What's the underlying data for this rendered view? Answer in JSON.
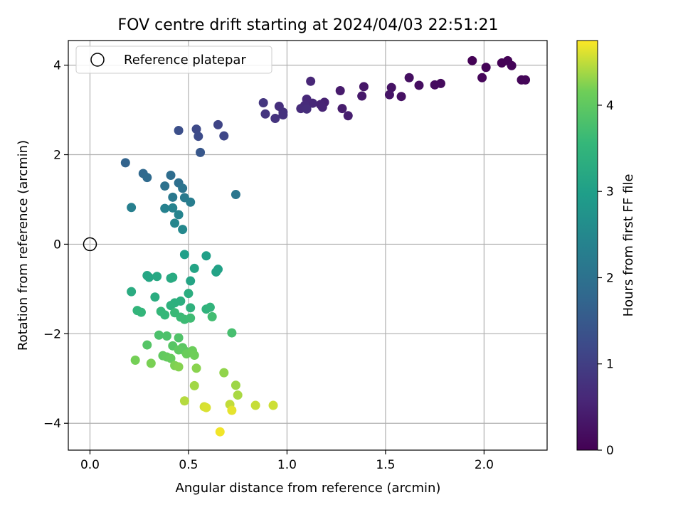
{
  "chart_data": {
    "type": "scatter",
    "title": "FOV centre drift starting at 2024/04/03 22:51:21",
    "xlabel": "Angular distance from reference (arcmin)",
    "ylabel": "Rotation from reference (arcmin)",
    "xlim": [
      -0.11,
      2.32
    ],
    "ylim": [
      -4.6,
      4.55
    ],
    "x_ticks": [
      0.0,
      0.5,
      1.0,
      1.5,
      2.0
    ],
    "x_tick_labels": [
      "0.0",
      "0.5",
      "1.0",
      "1.5",
      "2.0"
    ],
    "y_ticks": [
      -4,
      -2,
      0,
      2,
      4
    ],
    "y_tick_labels": [
      "−4",
      "−2",
      "0",
      "2",
      "4"
    ],
    "grid": true,
    "legend": {
      "placement": "top-left",
      "entries": [
        "Reference platepar"
      ]
    },
    "reference_point": {
      "x": 0.0,
      "y": 0.0
    },
    "colorbar": {
      "label": "Hours from first FF file",
      "colormap": "viridis",
      "range": [
        0,
        4.75
      ],
      "ticks": [
        0,
        1,
        2,
        3,
        4
      ],
      "tick_labels": [
        "0",
        "1",
        "2",
        "3",
        "4"
      ]
    },
    "series": [
      {
        "points": [
          {
            "x": 1.94,
            "y": 4.1,
            "c": 0.02
          },
          {
            "x": 2.01,
            "y": 3.95,
            "c": 0.05
          },
          {
            "x": 2.09,
            "y": 4.05,
            "c": 0.03
          },
          {
            "x": 2.12,
            "y": 4.1,
            "c": 0.04
          },
          {
            "x": 2.14,
            "y": 3.99,
            "c": 0.06
          },
          {
            "x": 1.99,
            "y": 3.72,
            "c": 0.08
          },
          {
            "x": 2.19,
            "y": 3.67,
            "c": 0.07
          },
          {
            "x": 2.21,
            "y": 3.67,
            "c": 0.09
          },
          {
            "x": 1.78,
            "y": 3.59,
            "c": 0.15
          },
          {
            "x": 1.75,
            "y": 3.56,
            "c": 0.17
          },
          {
            "x": 1.67,
            "y": 3.55,
            "c": 0.2
          },
          {
            "x": 1.62,
            "y": 3.72,
            "c": 0.22
          },
          {
            "x": 1.58,
            "y": 3.3,
            "c": 0.25
          },
          {
            "x": 1.53,
            "y": 3.5,
            "c": 0.27
          },
          {
            "x": 1.52,
            "y": 3.34,
            "c": 0.3
          },
          {
            "x": 1.39,
            "y": 3.52,
            "c": 0.33
          },
          {
            "x": 1.38,
            "y": 3.31,
            "c": 0.36
          },
          {
            "x": 1.27,
            "y": 3.43,
            "c": 0.4
          },
          {
            "x": 1.28,
            "y": 3.03,
            "c": 0.42
          },
          {
            "x": 1.31,
            "y": 2.87,
            "c": 0.45
          },
          {
            "x": 1.19,
            "y": 3.17,
            "c": 0.5
          },
          {
            "x": 1.17,
            "y": 3.12,
            "c": 0.53
          },
          {
            "x": 1.18,
            "y": 3.06,
            "c": 0.55
          },
          {
            "x": 1.12,
            "y": 3.64,
            "c": 0.58
          },
          {
            "x": 1.13,
            "y": 3.15,
            "c": 0.6
          },
          {
            "x": 1.1,
            "y": 3.24,
            "c": 0.62
          },
          {
            "x": 1.09,
            "y": 3.1,
            "c": 0.65
          },
          {
            "x": 1.07,
            "y": 3.03,
            "c": 0.67
          },
          {
            "x": 1.1,
            "y": 3.02,
            "c": 0.7
          },
          {
            "x": 0.96,
            "y": 3.08,
            "c": 0.72
          },
          {
            "x": 0.98,
            "y": 2.95,
            "c": 0.75
          },
          {
            "x": 0.98,
            "y": 2.89,
            "c": 0.78
          },
          {
            "x": 0.94,
            "y": 2.81,
            "c": 0.8
          },
          {
            "x": 0.89,
            "y": 2.91,
            "c": 0.83
          },
          {
            "x": 0.88,
            "y": 3.16,
            "c": 0.85
          },
          {
            "x": 0.65,
            "y": 2.67,
            "c": 1.1
          },
          {
            "x": 0.68,
            "y": 2.42,
            "c": 1.15
          },
          {
            "x": 0.54,
            "y": 2.57,
            "c": 1.2
          },
          {
            "x": 0.55,
            "y": 2.41,
            "c": 1.25
          },
          {
            "x": 0.45,
            "y": 2.54,
            "c": 1.3
          },
          {
            "x": 0.56,
            "y": 2.05,
            "c": 1.45
          },
          {
            "x": 0.18,
            "y": 1.82,
            "c": 1.7
          },
          {
            "x": 0.27,
            "y": 1.58,
            "c": 1.8
          },
          {
            "x": 0.29,
            "y": 1.49,
            "c": 1.85
          },
          {
            "x": 0.41,
            "y": 1.54,
            "c": 1.9
          },
          {
            "x": 0.45,
            "y": 1.37,
            "c": 1.95
          },
          {
            "x": 0.38,
            "y": 1.3,
            "c": 2.0
          },
          {
            "x": 0.47,
            "y": 1.25,
            "c": 2.05
          },
          {
            "x": 0.74,
            "y": 1.11,
            "c": 2.1
          },
          {
            "x": 0.42,
            "y": 1.05,
            "c": 2.15
          },
          {
            "x": 0.48,
            "y": 1.04,
            "c": 2.2
          },
          {
            "x": 0.51,
            "y": 0.94,
            "c": 2.25
          },
          {
            "x": 0.21,
            "y": 0.82,
            "c": 2.3
          },
          {
            "x": 0.38,
            "y": 0.8,
            "c": 2.35
          },
          {
            "x": 0.42,
            "y": 0.81,
            "c": 2.38
          },
          {
            "x": 0.45,
            "y": 0.66,
            "c": 2.42
          },
          {
            "x": 0.43,
            "y": 0.47,
            "c": 2.46
          },
          {
            "x": 0.47,
            "y": 0.33,
            "c": 2.5
          },
          {
            "x": 0.48,
            "y": -0.23,
            "c": 3.0
          },
          {
            "x": 0.59,
            "y": -0.26,
            "c": 3.02
          },
          {
            "x": 0.65,
            "y": -0.56,
            "c": 3.05
          },
          {
            "x": 0.64,
            "y": -0.62,
            "c": 3.08
          },
          {
            "x": 0.53,
            "y": -0.54,
            "c": 3.1
          },
          {
            "x": 0.51,
            "y": -0.82,
            "c": 3.12
          },
          {
            "x": 0.29,
            "y": -0.7,
            "c": 3.15
          },
          {
            "x": 0.3,
            "y": -0.74,
            "c": 3.17
          },
          {
            "x": 0.34,
            "y": -0.72,
            "c": 3.2
          },
          {
            "x": 0.41,
            "y": -0.76,
            "c": 3.22
          },
          {
            "x": 0.42,
            "y": -0.74,
            "c": 3.25
          },
          {
            "x": 0.21,
            "y": -1.06,
            "c": 3.28
          },
          {
            "x": 0.33,
            "y": -1.18,
            "c": 3.3
          },
          {
            "x": 0.5,
            "y": -1.1,
            "c": 3.33
          },
          {
            "x": 0.46,
            "y": -1.27,
            "c": 3.35
          },
          {
            "x": 0.43,
            "y": -1.31,
            "c": 3.38
          },
          {
            "x": 0.41,
            "y": -1.37,
            "c": 3.4
          },
          {
            "x": 0.51,
            "y": -1.42,
            "c": 3.42
          },
          {
            "x": 0.59,
            "y": -1.45,
            "c": 3.45
          },
          {
            "x": 0.61,
            "y": -1.41,
            "c": 3.47
          },
          {
            "x": 0.24,
            "y": -1.48,
            "c": 3.5
          },
          {
            "x": 0.26,
            "y": -1.52,
            "c": 3.52
          },
          {
            "x": 0.36,
            "y": -1.5,
            "c": 3.55
          },
          {
            "x": 0.38,
            "y": -1.58,
            "c": 3.57
          },
          {
            "x": 0.43,
            "y": -1.53,
            "c": 3.6
          },
          {
            "x": 0.46,
            "y": -1.63,
            "c": 3.62
          },
          {
            "x": 0.48,
            "y": -1.68,
            "c": 3.65
          },
          {
            "x": 0.51,
            "y": -1.65,
            "c": 3.67
          },
          {
            "x": 0.62,
            "y": -1.62,
            "c": 3.7
          },
          {
            "x": 0.72,
            "y": -1.98,
            "c": 3.75
          },
          {
            "x": 0.35,
            "y": -2.03,
            "c": 3.8
          },
          {
            "x": 0.39,
            "y": -2.05,
            "c": 3.82
          },
          {
            "x": 0.45,
            "y": -2.09,
            "c": 3.85
          },
          {
            "x": 0.29,
            "y": -2.25,
            "c": 3.9
          },
          {
            "x": 0.42,
            "y": -2.27,
            "c": 3.92
          },
          {
            "x": 0.47,
            "y": -2.31,
            "c": 3.95
          },
          {
            "x": 0.48,
            "y": -2.38,
            "c": 3.97
          },
          {
            "x": 0.45,
            "y": -2.36,
            "c": 4.0
          },
          {
            "x": 0.37,
            "y": -2.49,
            "c": 4.02
          },
          {
            "x": 0.39,
            "y": -2.52,
            "c": 4.05
          },
          {
            "x": 0.41,
            "y": -2.55,
            "c": 4.07
          },
          {
            "x": 0.49,
            "y": -2.45,
            "c": 4.1
          },
          {
            "x": 0.52,
            "y": -2.38,
            "c": 4.12
          },
          {
            "x": 0.53,
            "y": -2.48,
            "c": 4.15
          },
          {
            "x": 0.23,
            "y": -2.59,
            "c": 4.18
          },
          {
            "x": 0.31,
            "y": -2.66,
            "c": 4.2
          },
          {
            "x": 0.43,
            "y": -2.71,
            "c": 4.22
          },
          {
            "x": 0.45,
            "y": -2.74,
            "c": 4.25
          },
          {
            "x": 0.54,
            "y": -2.77,
            "c": 4.27
          },
          {
            "x": 0.68,
            "y": -2.87,
            "c": 4.3
          },
          {
            "x": 0.74,
            "y": -3.15,
            "c": 4.35
          },
          {
            "x": 0.53,
            "y": -3.16,
            "c": 4.37
          },
          {
            "x": 0.75,
            "y": -3.37,
            "c": 4.4
          },
          {
            "x": 0.48,
            "y": -3.5,
            "c": 4.45
          },
          {
            "x": 0.71,
            "y": -3.58,
            "c": 4.5
          },
          {
            "x": 0.84,
            "y": -3.6,
            "c": 4.52
          },
          {
            "x": 0.93,
            "y": -3.6,
            "c": 4.55
          },
          {
            "x": 0.58,
            "y": -3.63,
            "c": 4.57
          },
          {
            "x": 0.59,
            "y": -3.65,
            "c": 4.6
          },
          {
            "x": 0.72,
            "y": -3.71,
            "c": 4.65
          },
          {
            "x": 0.66,
            "y": -4.19,
            "c": 4.7
          }
        ]
      }
    ]
  }
}
